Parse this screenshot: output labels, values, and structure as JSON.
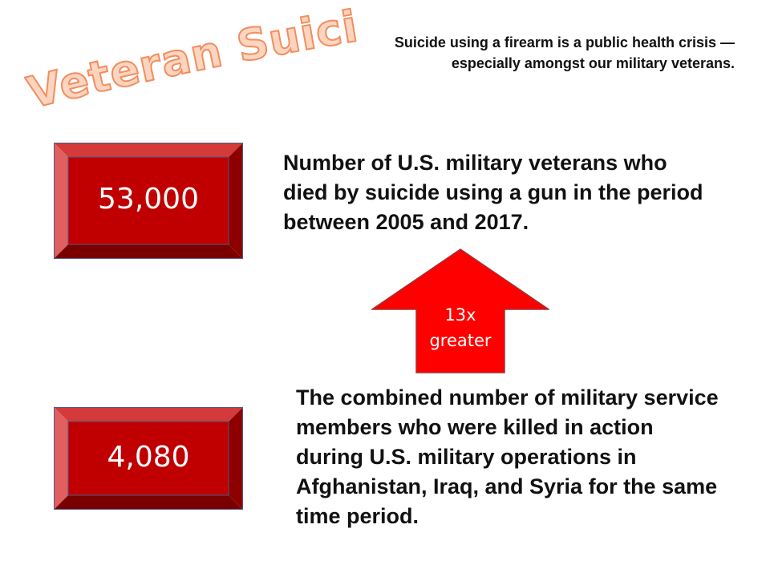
{
  "title": "Veteran Suicide",
  "subtitle": "Suicide using a firearm is a public health crisis — especially amongst our military veterans.",
  "stats": [
    {
      "value": "53,000",
      "description": "Number of U.S. military veterans who died by suicide using a gun in the period between 2005 and 2017."
    },
    {
      "value": "4,080",
      "description": "The combined number of military service members who were killed in action during U.S. military operations in Afghanistan, Iraq, and Syria for the same time period."
    }
  ],
  "comparison": {
    "line1": "13x",
    "line2": "greater"
  },
  "colors": {
    "title_fill": "#fbd5bf",
    "title_stroke": "#f28d5f",
    "box_face": "#c00000",
    "arrow": "#ff0000"
  }
}
